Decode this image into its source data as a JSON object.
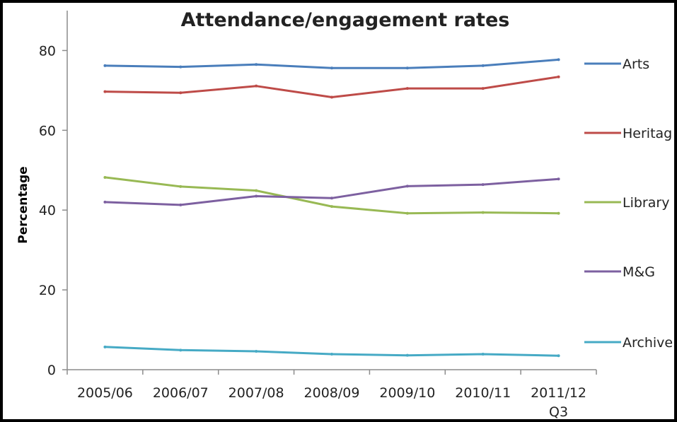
{
  "chart_data": {
    "type": "line",
    "title": "Attendance/engagement rates",
    "xlabel": "",
    "ylabel": "Percentage",
    "categories": [
      "2005/06",
      "2006/07",
      "2007/08",
      "2008/09",
      "2009/10",
      "2010/11",
      "2011/12 Q3"
    ],
    "category_lines": [
      [
        "2005/06"
      ],
      [
        "2006/07"
      ],
      [
        "2007/08"
      ],
      [
        "2008/09"
      ],
      [
        "2009/10"
      ],
      [
        "2010/11"
      ],
      [
        "2011/12",
        "Q3"
      ]
    ],
    "ylim": [
      0,
      90
    ],
    "yticks": [
      0,
      20,
      40,
      60,
      80
    ],
    "grid": false,
    "legend_placement": "right",
    "series": [
      {
        "name": "Arts",
        "color": "#4a7ebb",
        "values": [
          76.2,
          75.9,
          76.5,
          75.6,
          75.6,
          76.2,
          77.7
        ]
      },
      {
        "name": "Heritag",
        "color": "#be4b48",
        "values": [
          69.7,
          69.4,
          71.1,
          68.3,
          70.5,
          70.5,
          73.4
        ]
      },
      {
        "name": "Library",
        "color": "#98b954",
        "values": [
          48.2,
          45.9,
          44.9,
          40.9,
          39.2,
          39.4,
          39.2
        ]
      },
      {
        "name": "M&G",
        "color": "#7d60a0",
        "values": [
          42.0,
          41.3,
          43.5,
          43.0,
          46.0,
          46.4,
          47.8
        ]
      },
      {
        "name": "Archive",
        "color": "#46aac5",
        "values": [
          5.7,
          4.9,
          4.6,
          3.9,
          3.6,
          3.9,
          3.5
        ]
      }
    ]
  }
}
